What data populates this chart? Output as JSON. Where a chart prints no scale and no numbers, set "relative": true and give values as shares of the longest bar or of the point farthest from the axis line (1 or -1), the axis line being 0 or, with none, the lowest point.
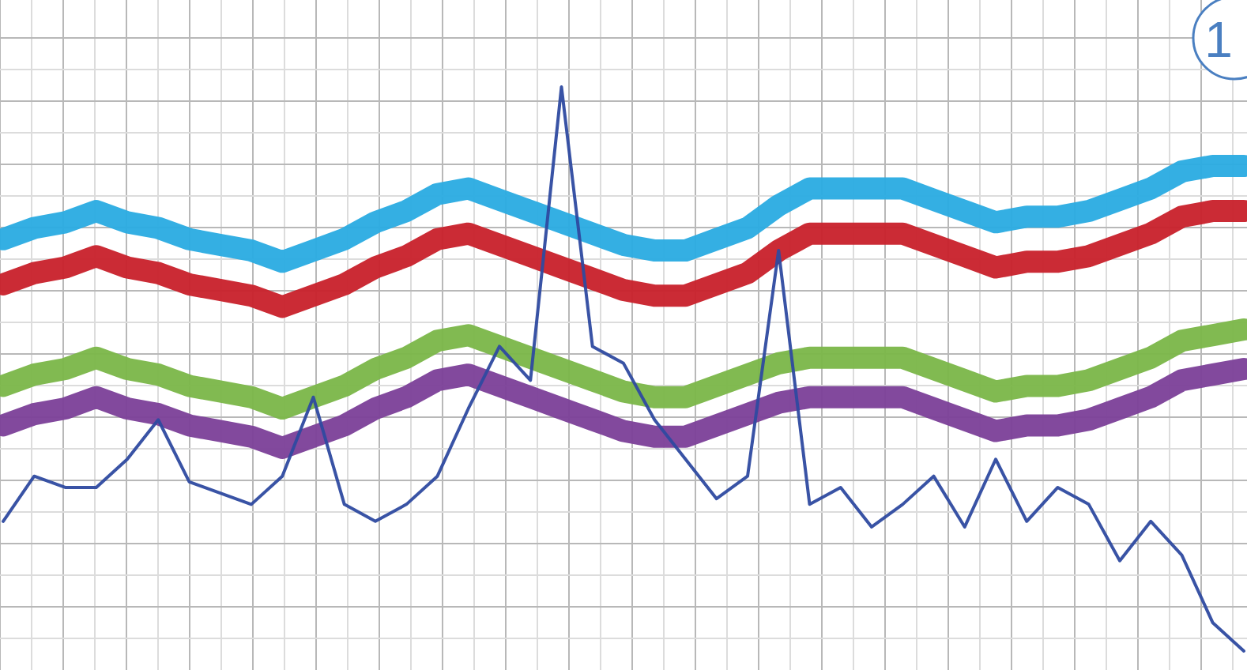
{
  "chart_data": {
    "type": "line",
    "relative": true,
    "grid": true,
    "line_style": "solid",
    "annotations": [
      "1"
    ],
    "categories": [
      null,
      null,
      null,
      null,
      null,
      null,
      null,
      null,
      null,
      null,
      null,
      null,
      null,
      null,
      null,
      null,
      null,
      null,
      null,
      null,
      null,
      null,
      null,
      null,
      null,
      null,
      null,
      null,
      null,
      null,
      null,
      null,
      null,
      null,
      null,
      null,
      null,
      null,
      null,
      null,
      null
    ],
    "series": [
      {
        "color": "#29abe2",
        "values": [
          0.73,
          0.75,
          0.76,
          0.78,
          0.76,
          0.75,
          0.73,
          0.72,
          0.71,
          0.69,
          0.71,
          0.73,
          0.76,
          0.78,
          0.81,
          0.82,
          0.8,
          0.78,
          0.76,
          0.74,
          0.72,
          0.71,
          0.71,
          0.73,
          0.75,
          0.79,
          0.82,
          0.82,
          0.82,
          0.82,
          0.8,
          0.78,
          0.76,
          0.77,
          0.77,
          0.78,
          0.8,
          0.82,
          0.85,
          0.86,
          0.86
        ]
      },
      {
        "color": "#c8202a",
        "values": [
          0.65,
          0.67,
          0.68,
          0.7,
          0.68,
          0.67,
          0.65,
          0.64,
          0.63,
          0.61,
          0.63,
          0.65,
          0.68,
          0.7,
          0.73,
          0.74,
          0.72,
          0.7,
          0.68,
          0.66,
          0.64,
          0.63,
          0.63,
          0.65,
          0.67,
          0.71,
          0.74,
          0.74,
          0.74,
          0.74,
          0.72,
          0.7,
          0.68,
          0.69,
          0.69,
          0.7,
          0.72,
          0.74,
          0.77,
          0.78,
          0.78
        ]
      },
      {
        "color": "#7ab648",
        "values": [
          0.47,
          0.49,
          0.5,
          0.52,
          0.5,
          0.49,
          0.47,
          0.46,
          0.45,
          0.43,
          0.45,
          0.47,
          0.5,
          0.52,
          0.55,
          0.56,
          0.54,
          0.52,
          0.5,
          0.48,
          0.46,
          0.45,
          0.45,
          0.47,
          0.49,
          0.51,
          0.52,
          0.52,
          0.52,
          0.52,
          0.5,
          0.48,
          0.46,
          0.47,
          0.47,
          0.48,
          0.5,
          0.52,
          0.55,
          0.56,
          0.57
        ]
      },
      {
        "color": "#7b3f98",
        "values": [
          0.4,
          0.42,
          0.43,
          0.45,
          0.43,
          0.42,
          0.4,
          0.39,
          0.38,
          0.36,
          0.38,
          0.4,
          0.43,
          0.45,
          0.48,
          0.49,
          0.47,
          0.45,
          0.43,
          0.41,
          0.39,
          0.38,
          0.38,
          0.4,
          0.42,
          0.44,
          0.45,
          0.45,
          0.45,
          0.45,
          0.43,
          0.41,
          0.39,
          0.4,
          0.4,
          0.41,
          0.43,
          0.45,
          0.48,
          0.49,
          0.5
        ]
      },
      {
        "color": "#2e4aa0",
        "values": [
          0.23,
          0.31,
          0.29,
          0.29,
          0.34,
          0.41,
          0.3,
          0.28,
          0.26,
          0.31,
          0.45,
          0.26,
          0.23,
          0.26,
          0.31,
          0.43,
          0.54,
          0.48,
          1.0,
          0.54,
          0.51,
          0.41,
          0.34,
          0.27,
          0.31,
          0.71,
          0.26,
          0.29,
          0.22,
          0.26,
          0.31,
          0.22,
          0.34,
          0.23,
          0.29,
          0.26,
          0.16,
          0.23,
          0.17,
          0.05,
          0
        ]
      }
    ]
  }
}
